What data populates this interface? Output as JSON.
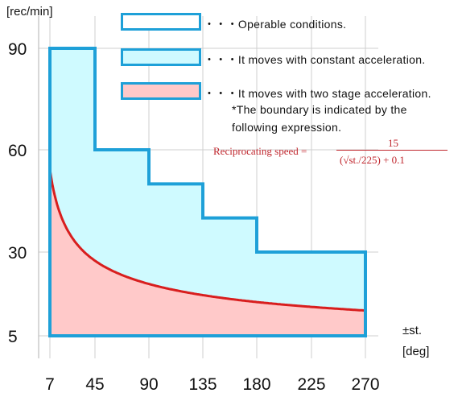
{
  "chart_data": {
    "type": "area",
    "ylabel": "[rec/min]",
    "xlabel_line1": "±st.",
    "xlabel_line2": "[deg]",
    "x_ticks": [
      7,
      45,
      90,
      135,
      180,
      225,
      270
    ],
    "y_ticks": [
      5,
      30,
      60,
      90
    ],
    "series": [
      {
        "name": "Operable conditions.",
        "kind": "step",
        "points": [
          [
            7,
            90
          ],
          [
            45,
            90
          ],
          [
            45,
            60
          ],
          [
            90,
            60
          ],
          [
            90,
            50
          ],
          [
            135,
            50
          ],
          [
            135,
            40
          ],
          [
            180,
            40
          ],
          [
            180,
            30
          ],
          [
            270,
            30
          ],
          [
            270,
            5
          ],
          [
            7,
            5
          ]
        ]
      },
      {
        "name": "It moves with constant acceleration.",
        "kind": "region-above-curve"
      },
      {
        "name": "It moves with two stage acceleration.",
        "kind": "curve",
        "formula": "15 / (sqrt(st./225) + 0.1)",
        "x_range": [
          7,
          270
        ]
      }
    ],
    "colors": {
      "border": "#1ea0d8",
      "constant_fill": "#cffaff",
      "two_stage_fill": "#ffc9c9",
      "curve": "#d81e1e",
      "grid": "#cfcfcf"
    }
  },
  "legend": {
    "operable": "・・・Operable conditions.",
    "constant": "・・・It moves with constant acceleration.",
    "two_stage": "・・・It moves with two stage acceleration."
  },
  "note": {
    "line1": "*The boundary is indicated by the",
    "line2": "following expression."
  },
  "formula": {
    "lhs": "Reciprocating speed =",
    "numerator": "15",
    "denominator": "(√st./225) + 0.1"
  }
}
